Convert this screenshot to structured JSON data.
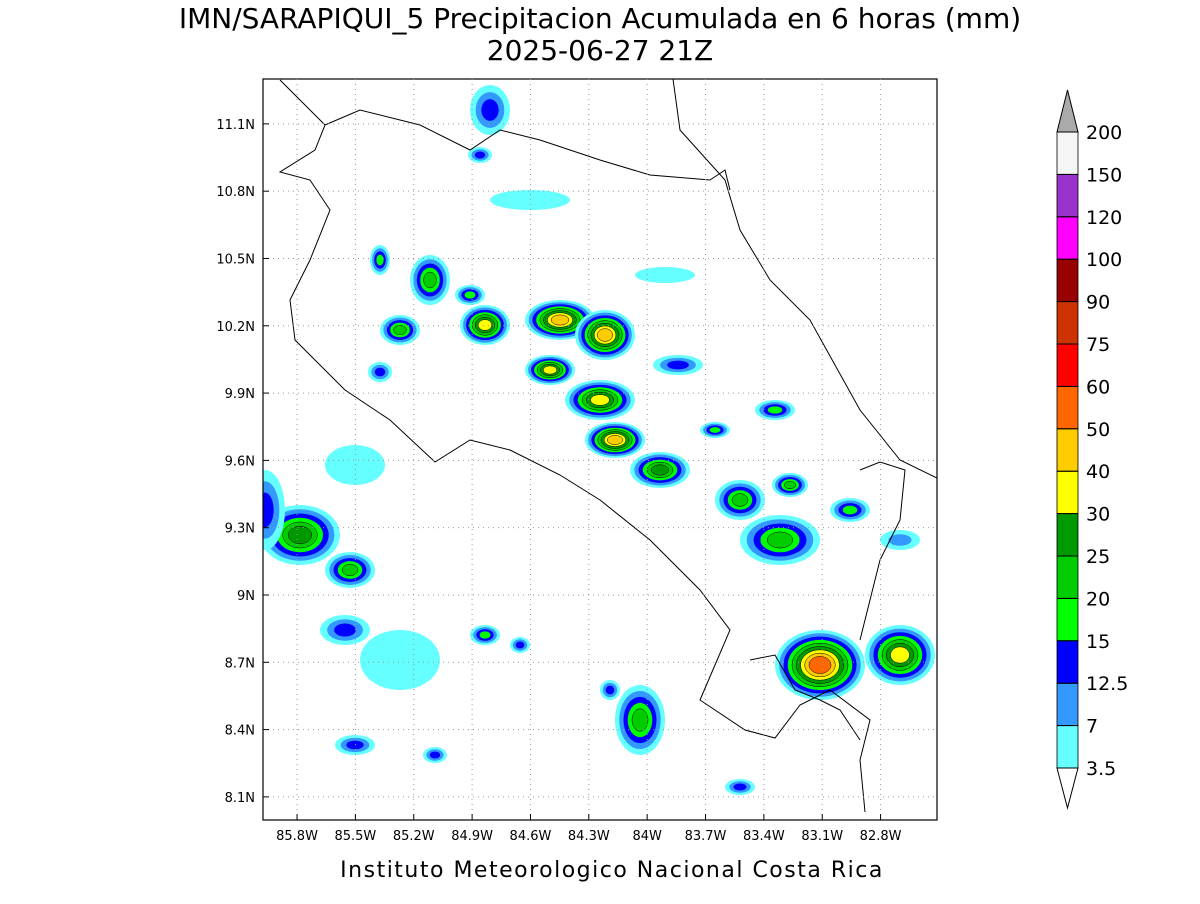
{
  "map": {
    "title": "IMN/SARAPIQUI_5 Precipitacion Acumulada en 6 horas (mm)",
    "subtitle": "2025-06-27 21Z",
    "footer": "Instituto Meteorologico Nacional Costa Rica",
    "xlim": [
      -85.975,
      -82.51
    ],
    "ylim": [
      7.997,
      11.3
    ],
    "xticks": [
      {
        "value": -85.8,
        "label": "85.8W"
      },
      {
        "value": -85.5,
        "label": "85.5W"
      },
      {
        "value": -85.2,
        "label": "85.2W"
      },
      {
        "value": -84.9,
        "label": "84.9W"
      },
      {
        "value": -84.6,
        "label": "84.6W"
      },
      {
        "value": -84.3,
        "label": "84.3W"
      },
      {
        "value": -84.0,
        "label": "84W"
      },
      {
        "value": -83.7,
        "label": "83.7W"
      },
      {
        "value": -83.4,
        "label": "83.4W"
      },
      {
        "value": -83.1,
        "label": "83.1W"
      },
      {
        "value": -82.8,
        "label": "82.8W"
      }
    ],
    "yticks": [
      {
        "value": 8.1,
        "label": "8.1N"
      },
      {
        "value": 8.4,
        "label": "8.4N"
      },
      {
        "value": 8.7,
        "label": "8.7N"
      },
      {
        "value": 9.0,
        "label": "9N"
      },
      {
        "value": 9.3,
        "label": "9.3N"
      },
      {
        "value": 9.6,
        "label": "9.6N"
      },
      {
        "value": 9.9,
        "label": "9.9N"
      },
      {
        "value": 10.2,
        "label": "10.2N"
      },
      {
        "value": 10.5,
        "label": "10.5N"
      },
      {
        "value": 10.8,
        "label": "10.8N"
      },
      {
        "value": 11.1,
        "label": "11.1N"
      }
    ],
    "grid": true,
    "colorbar": {
      "levels": [
        3.5,
        7,
        12.5,
        15,
        20,
        25,
        30,
        40,
        50,
        60,
        75,
        90,
        100,
        120,
        150,
        200
      ],
      "label_levels": [
        {
          "value": 12.5,
          "label": "12.5"
        }
      ],
      "colors": [
        "#66ffff",
        "#3399ff",
        "#0000ff",
        "#00ff00",
        "#00cc00",
        "#009900",
        "#ffff00",
        "#ffcc00",
        "#ff6600",
        "#ff0000",
        "#cc3300",
        "#990000",
        "#ff00ff",
        "#9933cc",
        "#f5f5f5"
      ],
      "under_color": "#ffffff",
      "over_color": "#aaaaaa"
    }
  }
}
